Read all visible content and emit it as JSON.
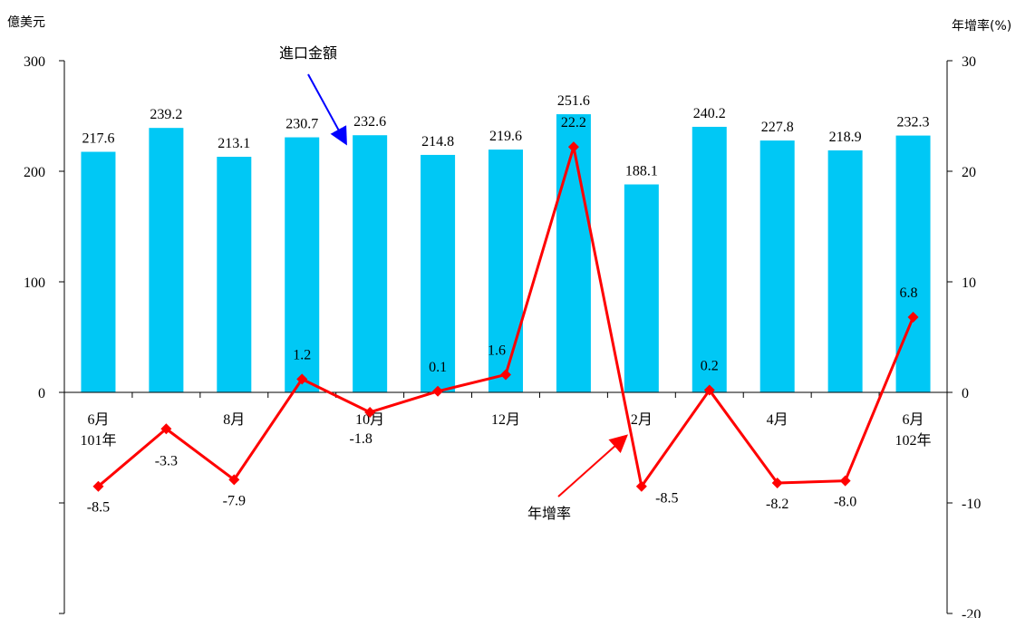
{
  "chart_data": {
    "type": "bar",
    "left_unit": "億美元",
    "right_unit": "年增率(%)",
    "x_labels": [
      [
        "6月",
        "101年"
      ],
      [
        ""
      ],
      [
        "8月"
      ],
      [
        ""
      ],
      [
        "10月"
      ],
      [
        ""
      ],
      [
        "12月"
      ],
      [
        ""
      ],
      [
        "2月"
      ],
      [
        ""
      ],
      [
        "4月"
      ],
      [
        ""
      ],
      [
        "6月",
        "102年"
      ]
    ],
    "bar_series": {
      "name": "進口金額",
      "color": "#00c8f5",
      "values": [
        217.6,
        239.2,
        213.1,
        230.7,
        232.6,
        214.8,
        219.6,
        251.6,
        188.1,
        240.2,
        227.8,
        218.9,
        232.3
      ],
      "labels": [
        "217.6",
        "239.2",
        "213.1",
        "230.7",
        "232.6",
        "214.8",
        "219.6",
        "251.6",
        "188.1",
        "240.2",
        "227.8",
        "218.9",
        "232.3"
      ]
    },
    "line_series": {
      "name": "年增率",
      "color": "#ff0000",
      "values": [
        -8.5,
        -3.3,
        -7.9,
        1.2,
        -1.8,
        0.1,
        1.6,
        22.2,
        -8.5,
        0.2,
        -8.2,
        -8.0,
        6.8
      ],
      "labels": [
        "-8.5",
        "-3.3",
        "-7.9",
        "1.2",
        "-1.8",
        "0.1",
        "1.6",
        "22.2",
        "-8.5",
        "0.2",
        "-8.2",
        "-8.0",
        "6.8"
      ]
    },
    "left_axis": {
      "ylim": [
        -200,
        300
      ],
      "ticks": [
        300,
        200,
        100,
        0
      ],
      "tick_labels": [
        "300",
        "200",
        "100",
        "0"
      ]
    },
    "right_axis": {
      "ylim": [
        -20,
        30
      ],
      "ticks": [
        30,
        20,
        10,
        0,
        -10,
        -20
      ],
      "tick_labels": [
        "30",
        "20",
        "10",
        "0",
        "-10",
        "-20"
      ]
    },
    "annotations": {
      "bar": "進口金額",
      "line": "年增率",
      "bar_arrow_color": "#0000ff",
      "line_arrow_color": "#ff0000"
    }
  }
}
